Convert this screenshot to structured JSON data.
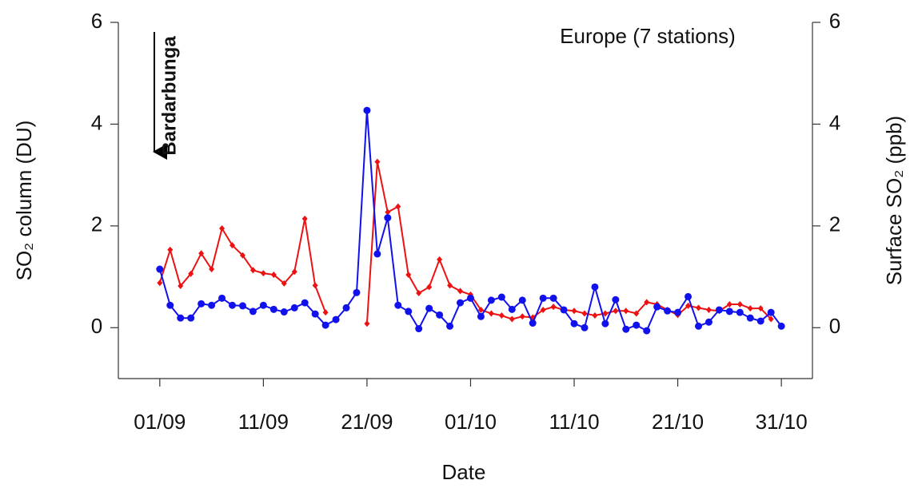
{
  "chart_data": {
    "type": "line",
    "x_label": "Date",
    "y_label": "SO₂ column (DU)",
    "y2_label": "Surface SO₂ (ppb)",
    "annotations": [
      "Europe (7 stations)",
      "Bardarbunga"
    ],
    "xlim": [
      "28/08",
      "03/11"
    ],
    "xticks": [
      "01/09",
      "11/09",
      "21/09",
      "01/10",
      "11/10",
      "21/10",
      "31/10"
    ],
    "ylim": [
      -1,
      6
    ],
    "yticks": [
      0,
      2,
      4,
      6
    ],
    "y2lim": [
      -1,
      6
    ],
    "y2ticks": [
      0,
      2,
      4,
      6
    ],
    "series": [
      {
        "color": "#ee1111",
        "axis": "y2",
        "marker": "diamond",
        "x": [
          "01/09",
          "02/09",
          "03/09",
          "04/09",
          "05/09",
          "06/09",
          "07/09",
          "08/09",
          "09/09",
          "10/09",
          "11/09",
          "12/09",
          "13/09",
          "14/09",
          "15/09",
          "16/09",
          "17/09",
          "18/09",
          "19/09",
          "20/09",
          "21/09",
          "22/09",
          "23/09",
          "24/09",
          "25/09",
          "26/09",
          "27/09",
          "28/09",
          "29/09",
          "30/09",
          "01/10",
          "02/10",
          "03/10",
          "04/10",
          "05/10",
          "06/10",
          "07/10",
          "08/10",
          "09/10",
          "10/10",
          "11/10",
          "12/10",
          "13/10",
          "14/10",
          "15/10",
          "16/10",
          "17/10",
          "18/10",
          "19/10",
          "20/10",
          "21/10",
          "22/10",
          "23/10",
          "24/10",
          "25/10",
          "26/10",
          "27/10",
          "28/10",
          "29/10",
          "30/10"
        ],
        "values": [
          0.88,
          1.53,
          0.82,
          1.06,
          1.46,
          1.15,
          1.95,
          1.62,
          1.42,
          1.13,
          1.07,
          1.04,
          0.87,
          1.1,
          2.14,
          0.83,
          0.3,
          null,
          null,
          null,
          0.08,
          3.26,
          2.27,
          2.38,
          1.04,
          0.68,
          0.8,
          1.34,
          0.83,
          0.72,
          0.65,
          0.35,
          0.28,
          0.24,
          0.17,
          0.22,
          0.2,
          0.35,
          0.41,
          0.35,
          0.33,
          0.28,
          0.24,
          0.28,
          0.33,
          0.33,
          0.28,
          0.5,
          0.46,
          0.35,
          0.25,
          0.43,
          0.39,
          0.35,
          0.33,
          0.46,
          0.46,
          0.38,
          0.38,
          0.17
        ]
      },
      {
        "color": "#1111ee",
        "axis": "y",
        "marker": "circle",
        "x": [
          "01/09",
          "02/09",
          "03/09",
          "04/09",
          "05/09",
          "06/09",
          "07/09",
          "08/09",
          "09/09",
          "10/09",
          "11/09",
          "12/09",
          "13/09",
          "14/09",
          "15/09",
          "16/09",
          "17/09",
          "18/09",
          "19/09",
          "20/09",
          "21/09",
          "22/09",
          "23/09",
          "24/09",
          "25/09",
          "26/09",
          "27/09",
          "28/09",
          "29/09",
          "30/09",
          "01/10",
          "02/10",
          "03/10",
          "04/10",
          "05/10",
          "06/10",
          "07/10",
          "08/10",
          "09/10",
          "10/10",
          "11/10",
          "12/10",
          "13/10",
          "14/10",
          "15/10",
          "16/10",
          "17/10",
          "18/10",
          "19/10",
          "20/10",
          "21/10",
          "22/10",
          "23/10",
          "24/10",
          "25/10",
          "26/10",
          "27/10",
          "28/10",
          "29/10",
          "30/10",
          "31/10"
        ],
        "values": [
          1.15,
          0.44,
          0.19,
          0.19,
          0.47,
          0.44,
          0.58,
          0.44,
          0.43,
          0.32,
          0.44,
          0.36,
          0.31,
          0.39,
          0.49,
          0.27,
          0.05,
          0.16,
          0.39,
          0.69,
          4.27,
          1.45,
          2.16,
          0.44,
          0.32,
          -0.02,
          0.38,
          0.25,
          0.03,
          0.49,
          0.58,
          0.22,
          0.54,
          0.6,
          0.36,
          0.54,
          0.09,
          0.58,
          0.58,
          0.35,
          0.08,
          0.0,
          0.8,
          0.08,
          0.55,
          -0.03,
          0.05,
          -0.06,
          0.41,
          0.33,
          0.3,
          0.61,
          0.03,
          0.11,
          0.35,
          0.32,
          0.3,
          0.19,
          0.13,
          0.3,
          0.03
        ]
      }
    ]
  }
}
